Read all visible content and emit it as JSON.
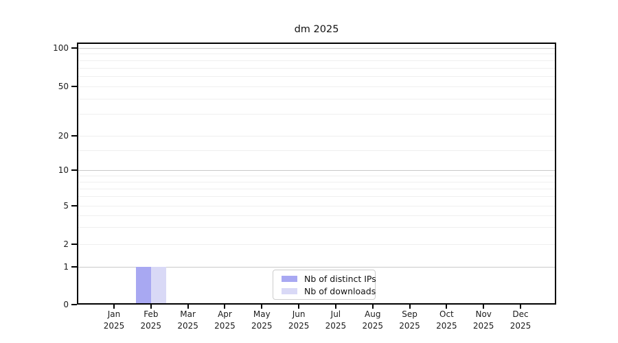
{
  "title": "dm 2025",
  "chart_data": {
    "type": "bar",
    "title": "dm 2025",
    "xlabel": "",
    "ylabel": "",
    "categories": [
      "Jan 2025",
      "Feb 2025",
      "Mar 2025",
      "Apr 2025",
      "May 2025",
      "Jun 2025",
      "Jul 2025",
      "Aug 2025",
      "Sep 2025",
      "Oct 2025",
      "Nov 2025",
      "Dec 2025"
    ],
    "series": [
      {
        "name": "Nb of distinct IPs",
        "color": "#a8a8f2",
        "values": [
          0,
          1,
          0,
          0,
          0,
          0,
          0,
          0,
          0,
          0,
          0,
          0
        ]
      },
      {
        "name": "Nb of downloads",
        "color": "#d9d9f6",
        "values": [
          0,
          1,
          0,
          0,
          0,
          0,
          0,
          0,
          0,
          0,
          0,
          0
        ]
      }
    ],
    "yticks": [
      0,
      1,
      2,
      5,
      10,
      20,
      50,
      100
    ],
    "ytick_labels": [
      "0",
      "1",
      "2",
      "5",
      "10",
      "20",
      "50",
      "100"
    ],
    "yscale": "log-like, linear segment 0-1",
    "ylim": [
      0,
      110
    ],
    "grid": "horizontal, major at 1/10/100, minor between",
    "legend_position": "lower center inside plot"
  },
  "x_axis": {
    "months": [
      "Jan",
      "Feb",
      "Mar",
      "Apr",
      "May",
      "Jun",
      "Jul",
      "Aug",
      "Sep",
      "Oct",
      "Nov",
      "Dec"
    ],
    "year": "2025"
  },
  "legend": {
    "items": [
      {
        "label": "Nb of distinct IPs",
        "color": "#a8a8f2"
      },
      {
        "label": "Nb of downloads",
        "color": "#d9d9f6"
      }
    ]
  },
  "colors": {
    "bar_distinct_ips": "#a8a8f2",
    "bar_downloads": "#d9d9f6",
    "grid_major": "#c9c9c9",
    "grid_minor": "#efefef",
    "spine": "#000000",
    "background": "#ffffff"
  }
}
